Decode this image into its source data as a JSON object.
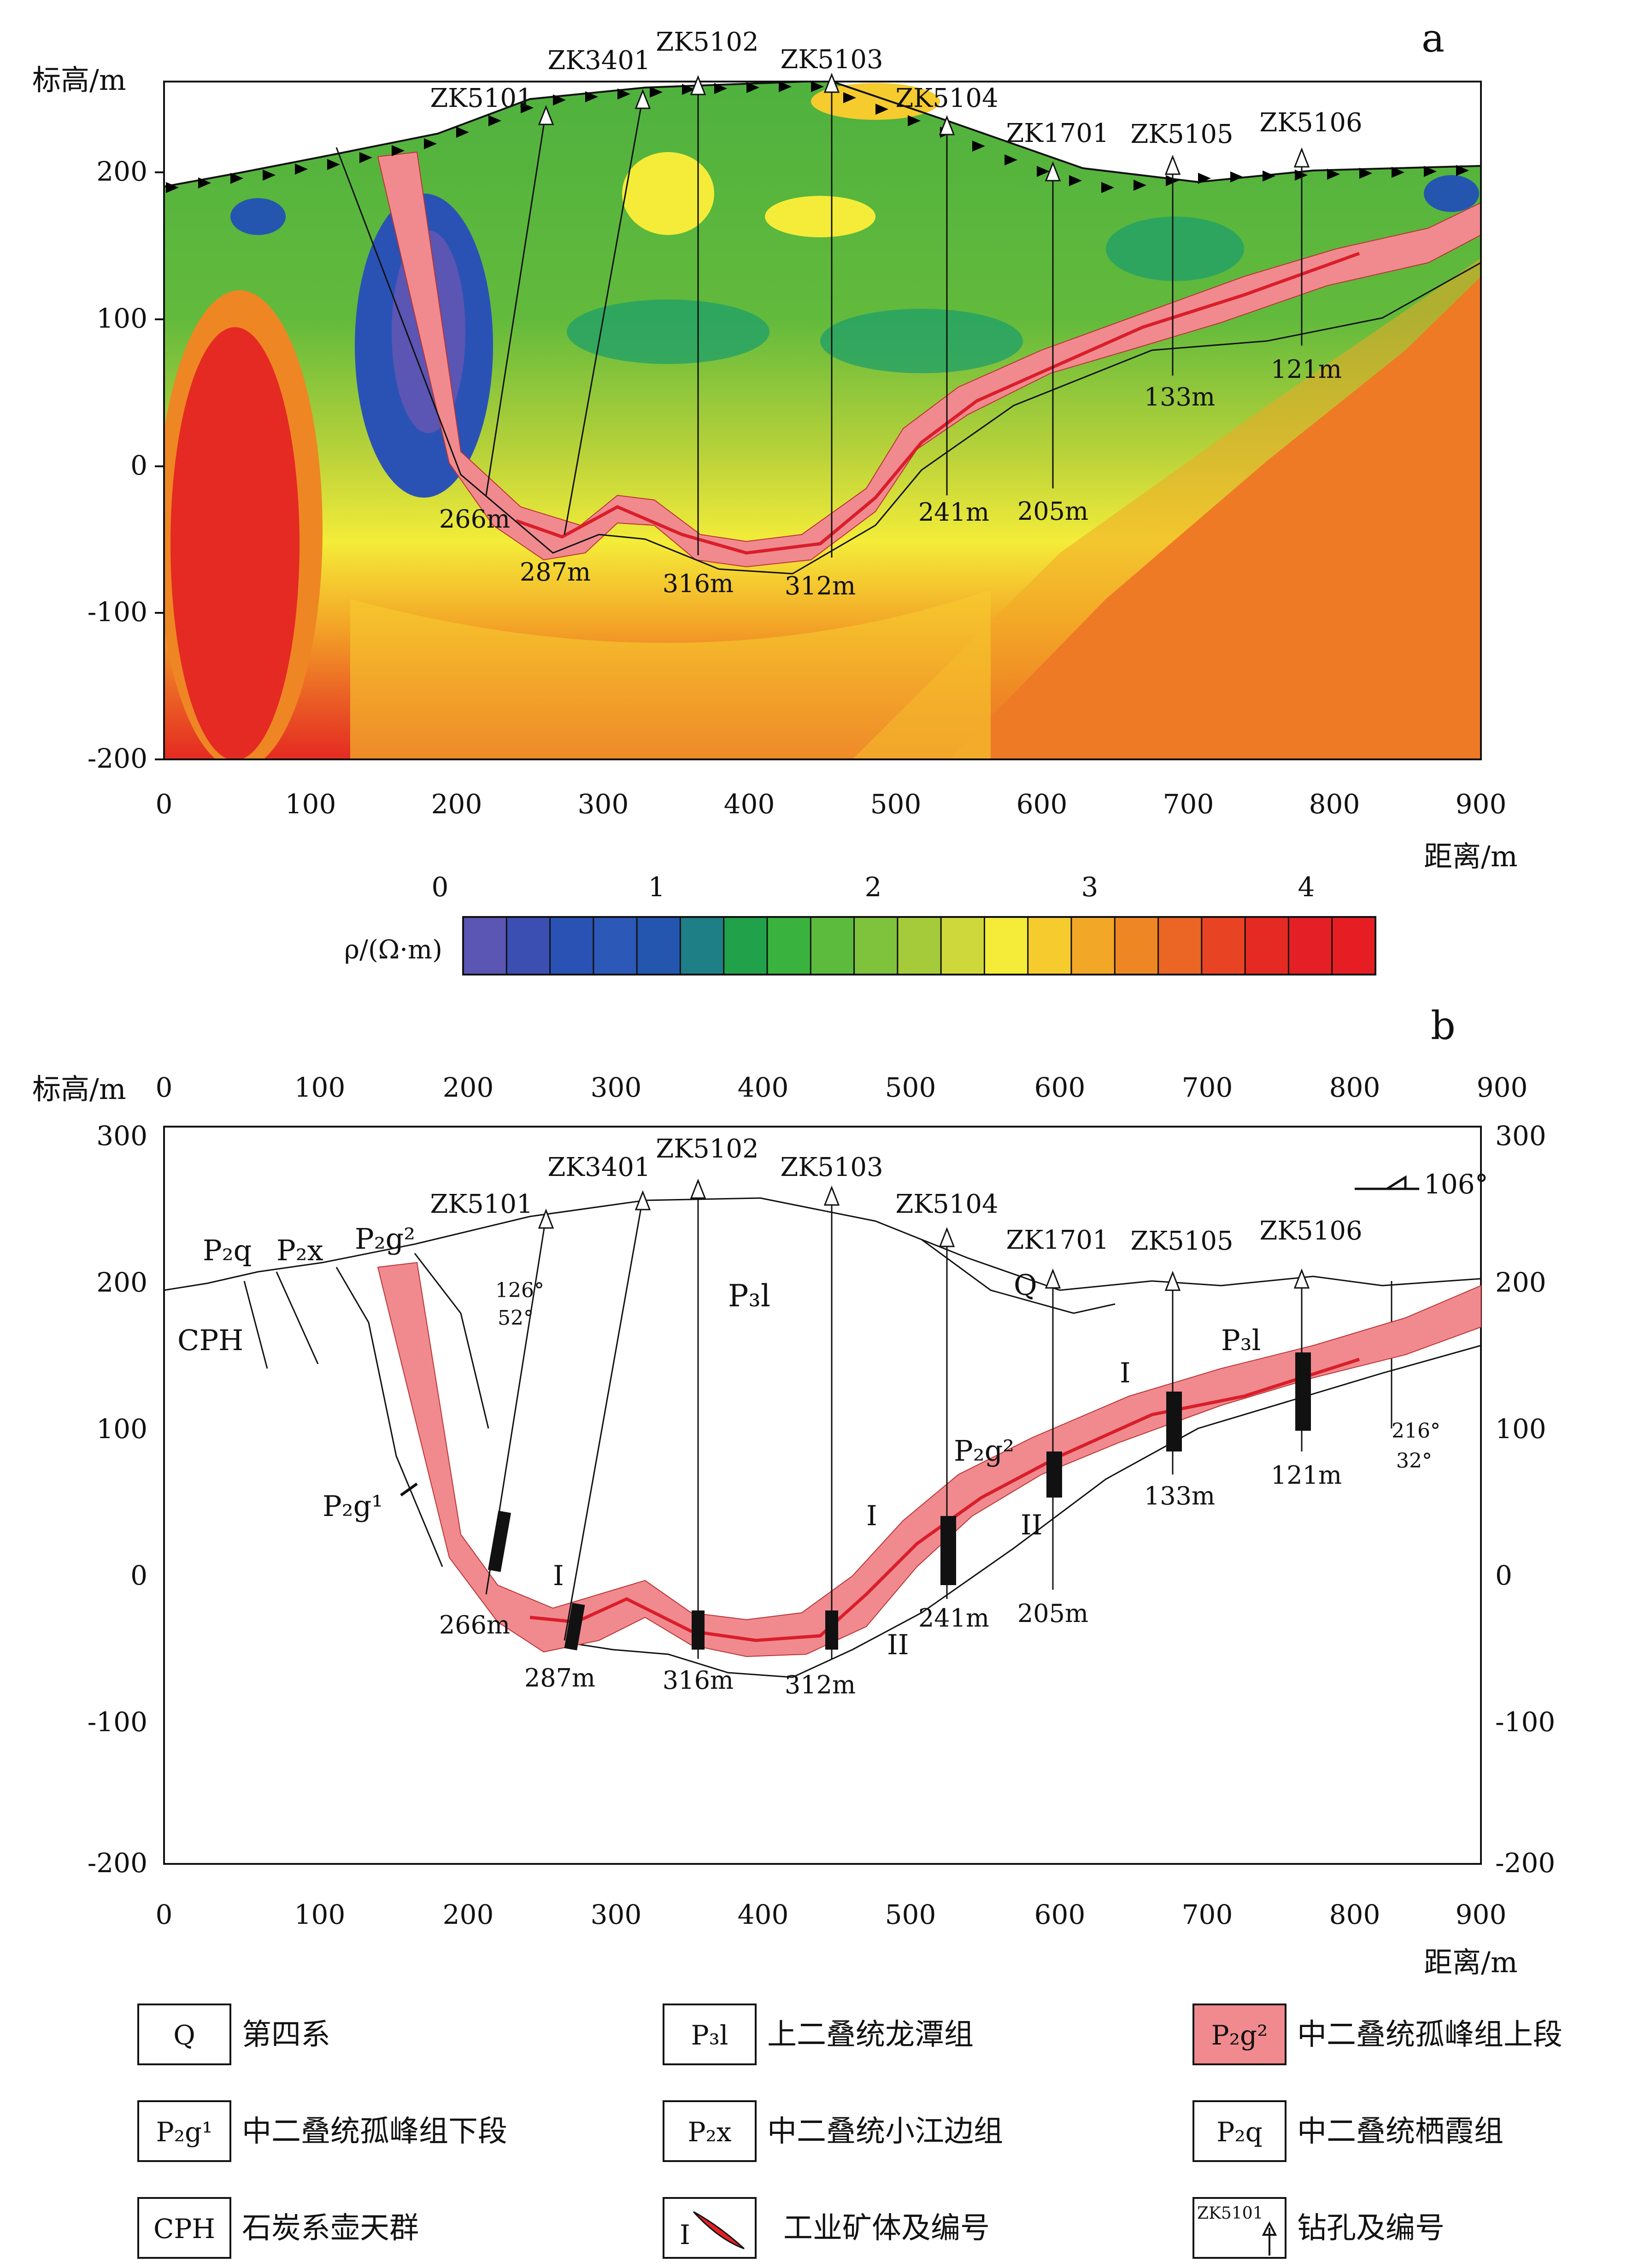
{
  "panel_a": {
    "label": "a",
    "y_axis_title": "标高/m",
    "x_axis_title": "距离/m",
    "y_ticks": [
      "200",
      "100",
      "0",
      "-100",
      "-200"
    ],
    "x_ticks": [
      "0",
      "100",
      "200",
      "300",
      "400",
      "500",
      "600",
      "700",
      "800",
      "900"
    ],
    "drillholes": [
      {
        "name": "ZK5101",
        "depth": "266m",
        "x": 258
      },
      {
        "name": "ZK3401",
        "depth": "287m",
        "x": 325
      },
      {
        "name": "ZK5102",
        "depth": "316m",
        "x": 362
      },
      {
        "name": "ZK5103",
        "depth": "312m",
        "x": 455
      },
      {
        "name": "ZK5104",
        "depth": "241m",
        "x": 533
      },
      {
        "name": "ZK1701",
        "depth": "205m",
        "x": 603
      },
      {
        "name": "ZK5105",
        "depth": "133m",
        "x": 690
      },
      {
        "name": "ZK5106",
        "depth": "121m",
        "x": 775
      }
    ],
    "colorbar": {
      "label": "ρ/(Ω·m)",
      "ticks": [
        "0",
        "1",
        "2",
        "3",
        "4"
      ],
      "colors": [
        "#5b55b3",
        "#3b4fb2",
        "#2a52b5",
        "#2c58b8",
        "#2456b0",
        "#1e7f86",
        "#21a149",
        "#3ab33e",
        "#5cbb3c",
        "#7fc23b",
        "#a5cb3a",
        "#cfd83b",
        "#f4ec39",
        "#f6cb2e",
        "#f3a727",
        "#ee8624",
        "#eb6525",
        "#e84424",
        "#e42a22",
        "#e51f26",
        "#e61e24"
      ]
    }
  },
  "panel_b": {
    "label": "b",
    "y_axis_title": "标高/m",
    "x_axis_title": "距离/m",
    "y_ticks": [
      "300",
      "200",
      "100",
      "0",
      "-100",
      "-200"
    ],
    "x_ticks": [
      "0",
      "100",
      "200",
      "300",
      "400",
      "500",
      "600",
      "700",
      "800",
      "900"
    ],
    "drillholes": [
      {
        "name": "ZK5101",
        "depth": "266m"
      },
      {
        "name": "ZK3401",
        "depth": "287m"
      },
      {
        "name": "ZK5102",
        "depth": "316m"
      },
      {
        "name": "ZK5103",
        "depth": "312m"
      },
      {
        "name": "ZK5104",
        "depth": "241m"
      },
      {
        "name": "ZK1701",
        "depth": "205m"
      },
      {
        "name": "ZK5105",
        "depth": "133m"
      },
      {
        "name": "ZK5106",
        "depth": "121m"
      }
    ],
    "formations": {
      "P2q": "P₂q",
      "P2x": "P₂x",
      "P2g2": "P₂g²",
      "P2g1": "P₂g¹",
      "P3l": "P₃l",
      "Q": "Q",
      "CPH": "CPH"
    },
    "ore_labels": {
      "I": "I",
      "II": "II"
    },
    "attitudes": [
      {
        "dir": "126°",
        "dip": "52°"
      },
      {
        "dir": "216°",
        "dip": "32°"
      }
    ],
    "orientation": "106°"
  },
  "legend": [
    {
      "code": "Q",
      "text": "第四系"
    },
    {
      "code": "P₃l",
      "text": "上二叠统龙潭组"
    },
    {
      "code": "P₂g²",
      "text": "中二叠统孤峰组上段"
    },
    {
      "code": "P₂g¹",
      "text": "中二叠统孤峰组下段"
    },
    {
      "code": "P₂x",
      "text": "中二叠统小江边组"
    },
    {
      "code": "P₂q",
      "text": "中二叠统栖霞组"
    },
    {
      "code": "CPH",
      "text": "石炭系壶天群"
    },
    {
      "code": "I",
      "text": "工业矿体及编号"
    },
    {
      "code": "ZK5101",
      "text": "钻孔及编号"
    }
  ],
  "colors": {
    "ore": "#f08a8f",
    "ore_core": "#d91e2a",
    "high": "#e42a22",
    "low": "#2a52b5"
  }
}
